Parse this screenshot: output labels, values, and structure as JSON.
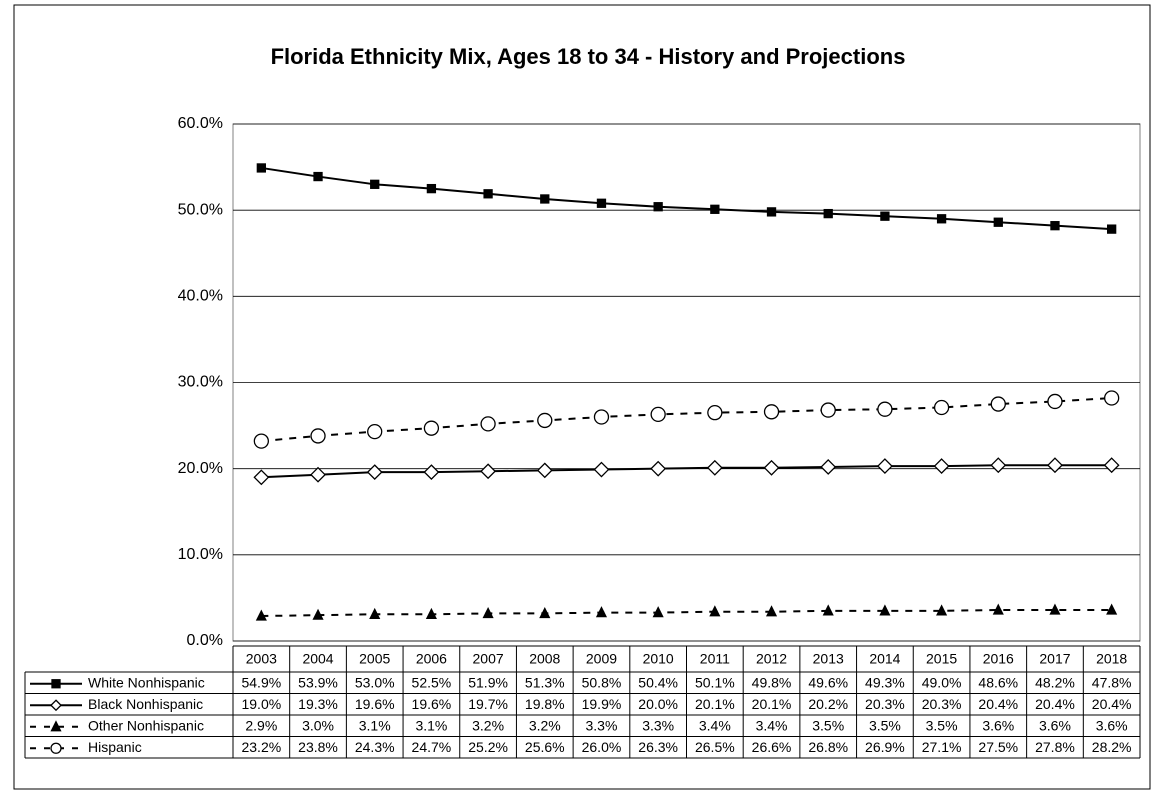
{
  "chart_data": {
    "type": "line",
    "title": "Florida Ethnicity Mix, Ages 18 to 34 - History and Projections",
    "categories": [
      "2003",
      "2004",
      "2005",
      "2006",
      "2007",
      "2008",
      "2009",
      "2010",
      "2011",
      "2012",
      "2013",
      "2014",
      "2015",
      "2016",
      "2017",
      "2018"
    ],
    "ylim": [
      0,
      60
    ],
    "yticks": [
      {
        "value": 0,
        "label": "0.0%"
      },
      {
        "value": 10,
        "label": "10.0%"
      },
      {
        "value": 20,
        "label": "20.0%"
      },
      {
        "value": 30,
        "label": "30.0%"
      },
      {
        "value": 40,
        "label": "40.0%"
      },
      {
        "value": 50,
        "label": "50.0%"
      },
      {
        "value": 60,
        "label": "60.0%"
      }
    ],
    "grid": true,
    "series": [
      {
        "name": "White Nonhispanic",
        "color": "#000000",
        "dash": "solid",
        "marker": "square",
        "values": [
          54.9,
          53.9,
          53.0,
          52.5,
          51.9,
          51.3,
          50.8,
          50.4,
          50.1,
          49.8,
          49.6,
          49.3,
          49.0,
          48.6,
          48.2,
          47.8
        ],
        "value_labels": [
          "54.9%",
          "53.9%",
          "53.0%",
          "52.5%",
          "51.9%",
          "51.3%",
          "50.8%",
          "50.4%",
          "50.1%",
          "49.8%",
          "49.6%",
          "49.3%",
          "49.0%",
          "48.6%",
          "48.2%",
          "47.8%"
        ]
      },
      {
        "name": "Black Nonhispanic",
        "color": "#000000",
        "dash": "solid",
        "marker": "diamond",
        "values": [
          19.0,
          19.3,
          19.6,
          19.6,
          19.7,
          19.8,
          19.9,
          20.0,
          20.1,
          20.1,
          20.2,
          20.3,
          20.3,
          20.4,
          20.4,
          20.4
        ],
        "value_labels": [
          "19.0%",
          "19.3%",
          "19.6%",
          "19.6%",
          "19.7%",
          "19.8%",
          "19.9%",
          "20.0%",
          "20.1%",
          "20.1%",
          "20.2%",
          "20.3%",
          "20.3%",
          "20.4%",
          "20.4%",
          "20.4%"
        ]
      },
      {
        "name": "Other Nonhispanic",
        "color": "#000000",
        "dash": "dashed",
        "marker": "triangle",
        "values": [
          2.9,
          3.0,
          3.1,
          3.1,
          3.2,
          3.2,
          3.3,
          3.3,
          3.4,
          3.4,
          3.5,
          3.5,
          3.5,
          3.6,
          3.6,
          3.6
        ],
        "value_labels": [
          "2.9%",
          "3.0%",
          "3.1%",
          "3.1%",
          "3.2%",
          "3.2%",
          "3.3%",
          "3.3%",
          "3.4%",
          "3.4%",
          "3.5%",
          "3.5%",
          "3.5%",
          "3.6%",
          "3.6%",
          "3.6%"
        ]
      },
      {
        "name": "Hispanic",
        "color": "#000000",
        "dash": "dashed",
        "marker": "circle",
        "values": [
          23.2,
          23.8,
          24.3,
          24.7,
          25.2,
          25.6,
          26.0,
          26.3,
          26.5,
          26.6,
          26.8,
          26.9,
          27.1,
          27.5,
          27.8,
          28.2
        ],
        "value_labels": [
          "23.2%",
          "23.8%",
          "24.3%",
          "24.7%",
          "25.2%",
          "25.6%",
          "26.0%",
          "26.3%",
          "26.5%",
          "26.6%",
          "26.8%",
          "26.9%",
          "27.1%",
          "27.5%",
          "27.8%",
          "28.2%"
        ]
      }
    ]
  }
}
